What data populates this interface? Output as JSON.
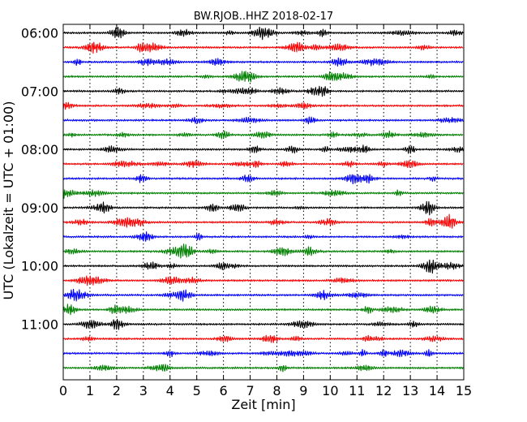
{
  "chart_data": {
    "type": "line",
    "title": "BW.RJOB..HHZ 2018-02-17",
    "xlabel": "Zeit  [min]",
    "ylabel": "UTC (Lokalzeit = UTC + 01:00)",
    "xlim": [
      0,
      15
    ],
    "x_ticks": [
      "0",
      "1",
      "2",
      "3",
      "4",
      "5",
      "6",
      "7",
      "8",
      "9",
      "10",
      "11",
      "12",
      "13",
      "14",
      "15"
    ],
    "y_ticks": [
      "06:00",
      "07:00",
      "08:00",
      "09:00",
      "10:00",
      "11:00"
    ],
    "grid": "vertical dotted",
    "line_minutes": 15,
    "trace_colors": [
      "#000000",
      "#ff0000",
      "#0000ff",
      "#008000"
    ],
    "traces": [
      "06:00",
      "06:15",
      "06:30",
      "06:45",
      "07:00",
      "07:15",
      "07:30",
      "07:45",
      "08:00",
      "08:15",
      "08:30",
      "08:45",
      "09:00",
      "09:15",
      "09:30",
      "09:45",
      "10:00",
      "10:15",
      "10:30",
      "10:45",
      "11:00",
      "11:15",
      "11:30",
      "11:45"
    ]
  }
}
